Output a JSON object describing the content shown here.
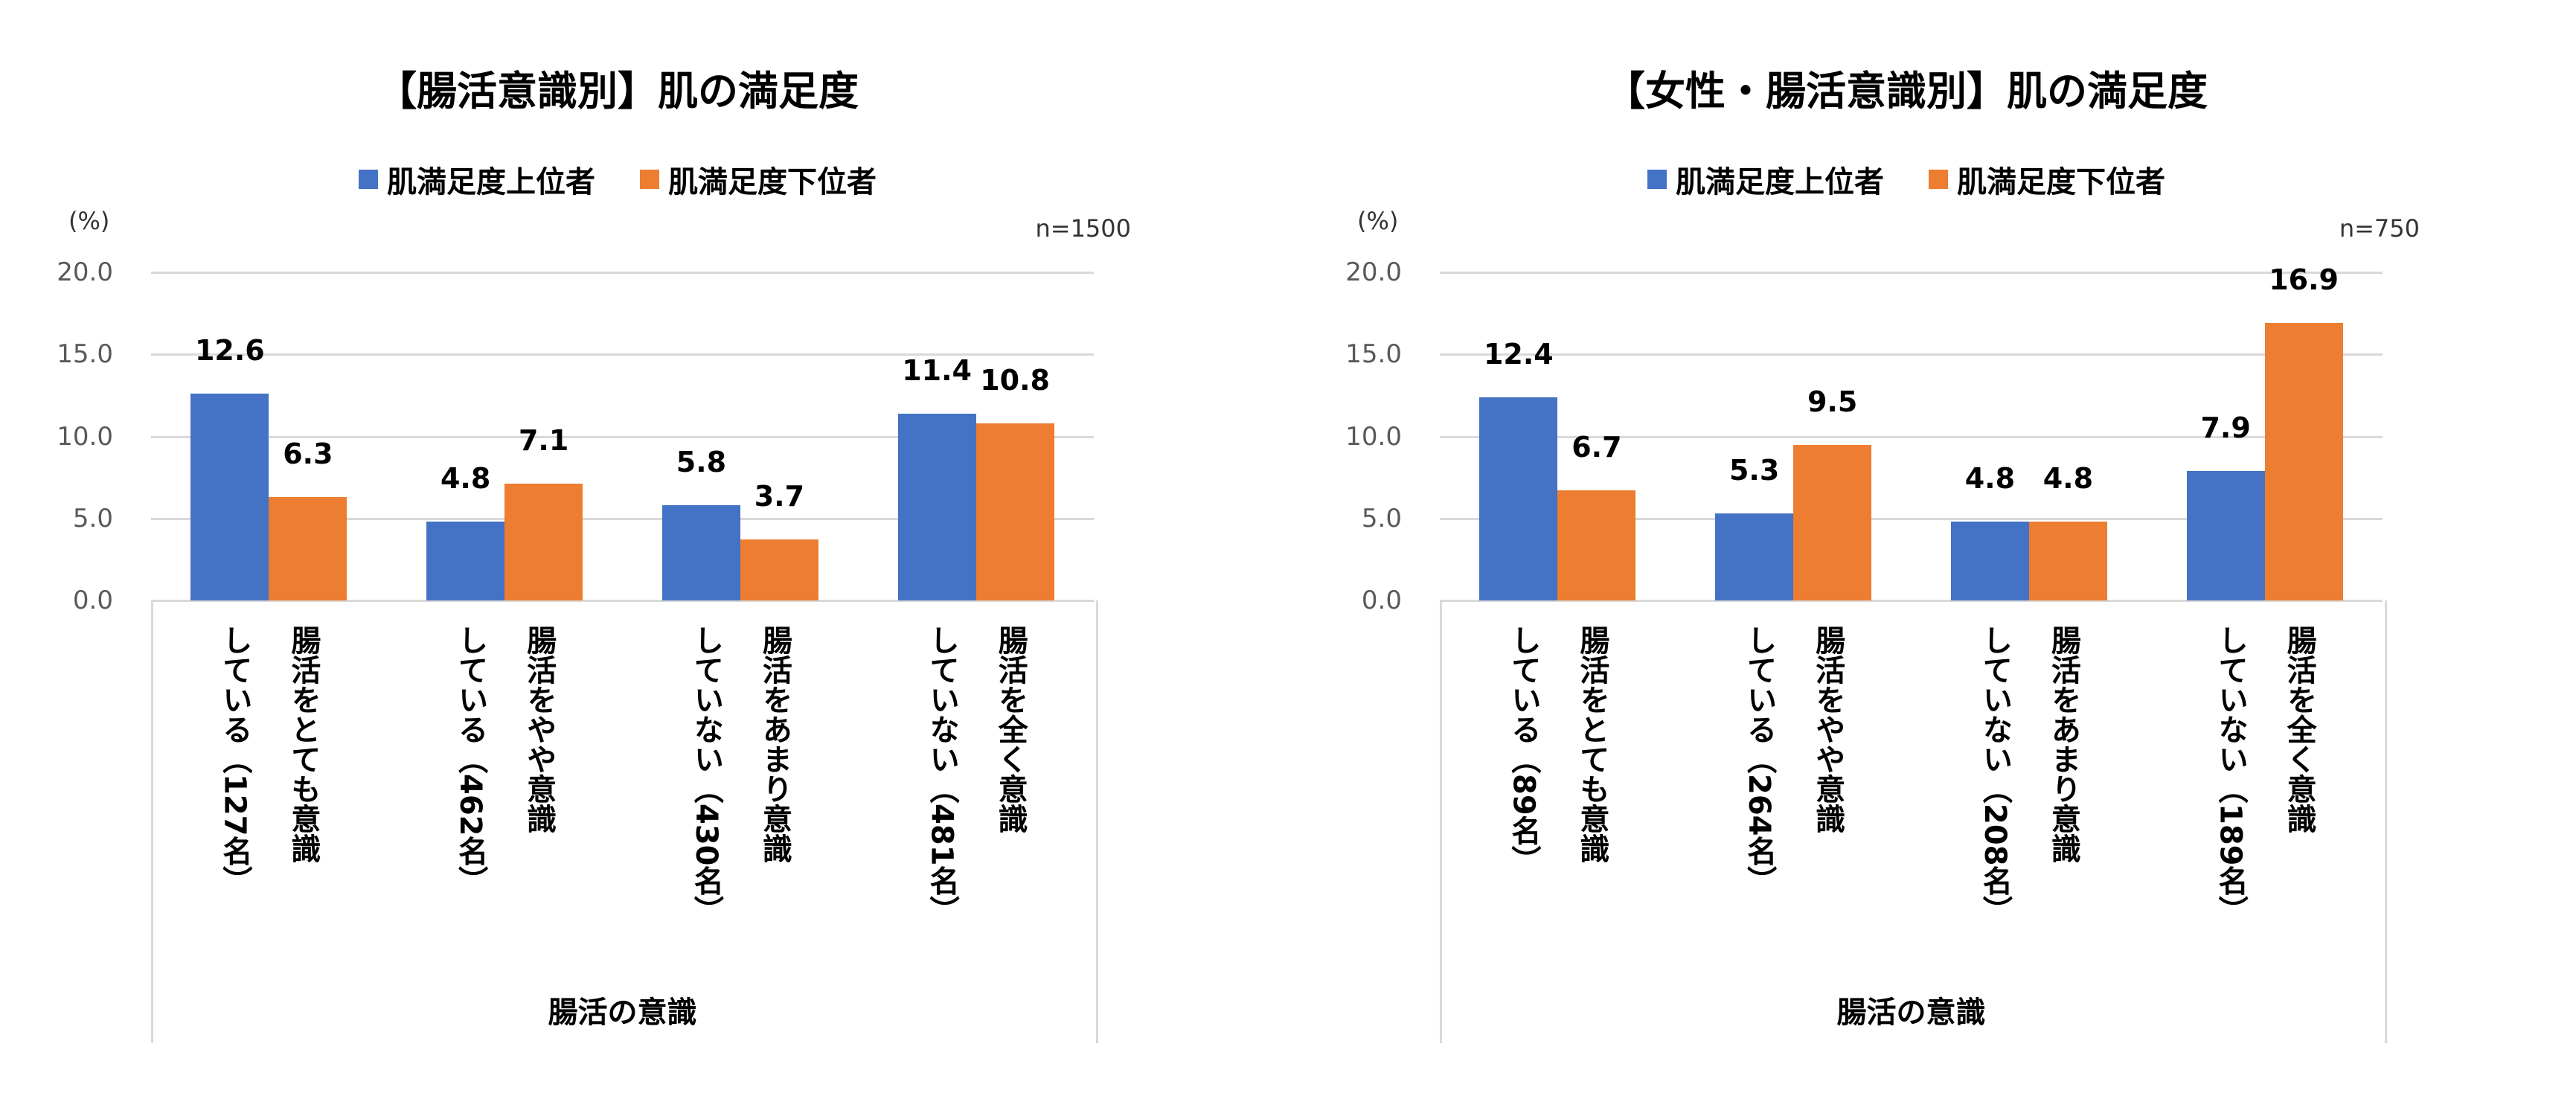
{
  "colors": {
    "upper": "#4472C4",
    "lower": "#ED7D31"
  },
  "chart_data": [
    {
      "type": "bar",
      "title": "【腸活意識別】肌の満足度",
      "unit_label": "(%)",
      "note": "n=1500",
      "xlabel": "腸活の意識",
      "ylim": [
        0,
        20
      ],
      "yticks": [
        "0.0",
        "5.0",
        "10.0",
        "15.0",
        "20.0"
      ],
      "grid": true,
      "legend": "top",
      "categories": [
        {
          "line1": "腸活をとても意識",
          "line2": "している（127名）"
        },
        {
          "line1": "腸活をやや意識",
          "line2": "している（462名）"
        },
        {
          "line1": "腸活をあまり意識",
          "line2": "していない（430名）"
        },
        {
          "line1": "腸活を全く意識",
          "line2": "していない（481名）"
        }
      ],
      "series": [
        {
          "name": "肌満足度上位者",
          "values": [
            12.6,
            4.8,
            5.8,
            11.4
          ]
        },
        {
          "name": "肌満足度下位者",
          "values": [
            6.3,
            7.1,
            3.7,
            10.8
          ]
        }
      ]
    },
    {
      "type": "bar",
      "title": "【女性・腸活意識別】肌の満足度",
      "unit_label": "(%)",
      "note": "n=750",
      "xlabel": "腸活の意識",
      "ylim": [
        0,
        20
      ],
      "yticks": [
        "0.0",
        "5.0",
        "10.0",
        "15.0",
        "20.0"
      ],
      "grid": true,
      "legend": "top",
      "categories": [
        {
          "line1": "腸活をとても意識",
          "line2": "している（89名）"
        },
        {
          "line1": "腸活をやや意識",
          "line2": "している（264名）"
        },
        {
          "line1": "腸活をあまり意識",
          "line2": "していない（208名）"
        },
        {
          "line1": "腸活を全く意識",
          "line2": "していない（189名）"
        }
      ],
      "series": [
        {
          "name": "肌満足度上位者",
          "values": [
            12.4,
            5.3,
            4.8,
            7.9
          ]
        },
        {
          "name": "肌満足度下位者",
          "values": [
            6.7,
            9.5,
            4.8,
            16.9
          ]
        }
      ]
    }
  ]
}
